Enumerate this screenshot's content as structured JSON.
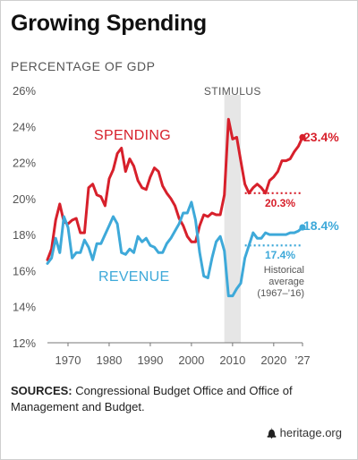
{
  "title": "Growing Spending",
  "subtitle": "PERCENTAGE OF GDP",
  "sources_label": "SOURCES:",
  "sources_text": " Congressional Budget Office and Office of Management and Budget.",
  "brand": "heritage.org",
  "colors": {
    "spending": "#d7202b",
    "revenue": "#3ea9d9",
    "band": "#e6e6e6",
    "axis": "#777777"
  },
  "chart_data": {
    "type": "line",
    "title": "Growing Spending",
    "ylabel": "PERCENTAGE OF GDP",
    "ylim": [
      12,
      26
    ],
    "xlim": [
      1965,
      2027
    ],
    "y_ticks": [
      "12%",
      "14%",
      "16%",
      "18%",
      "20%",
      "22%",
      "24%",
      "26%"
    ],
    "x_ticks": [
      "1970",
      "1980",
      "1990",
      "2000",
      "2010",
      "2020",
      "’27"
    ],
    "grid": false,
    "shaded_band": {
      "label": "STIMULUS",
      "x": [
        2008,
        2012
      ]
    },
    "series": [
      {
        "name": "SPENDING",
        "x": [
          1965,
          1966,
          1967,
          1968,
          1969,
          1970,
          1971,
          1972,
          1973,
          1974,
          1975,
          1976,
          1977,
          1978,
          1979,
          1980,
          1981,
          1982,
          1983,
          1984,
          1985,
          1986,
          1987,
          1988,
          1989,
          1990,
          1991,
          1992,
          1993,
          1994,
          1995,
          1996,
          1997,
          1998,
          1999,
          2000,
          2001,
          2002,
          2003,
          2004,
          2005,
          2006,
          2007,
          2008,
          2009,
          2010,
          2011,
          2012,
          2013,
          2014,
          2015,
          2016,
          2017,
          2018,
          2019,
          2020,
          2021,
          2022,
          2023,
          2024,
          2025,
          2026,
          2027
        ],
        "values": [
          16.6,
          17.2,
          18.8,
          19.7,
          18.7,
          18.6,
          18.8,
          18.9,
          18.1,
          18.1,
          20.6,
          20.8,
          20.2,
          20.1,
          19.6,
          21.1,
          21.6,
          22.5,
          22.8,
          21.5,
          22.2,
          21.8,
          21.0,
          20.6,
          20.5,
          21.2,
          21.7,
          21.5,
          20.7,
          20.3,
          20.0,
          19.6,
          18.9,
          18.5,
          17.9,
          17.6,
          17.6,
          18.5,
          19.1,
          19.0,
          19.2,
          19.1,
          19.1,
          20.2,
          24.4,
          23.3,
          23.4,
          22.1,
          20.8,
          20.3,
          20.6,
          20.8,
          20.6,
          20.3,
          21.0,
          21.2,
          21.5,
          22.1,
          22.1,
          22.2,
          22.6,
          22.9,
          23.4
        ]
      },
      {
        "name": "REVENUE",
        "x": [
          1965,
          1966,
          1967,
          1968,
          1969,
          1970,
          1971,
          1972,
          1973,
          1974,
          1975,
          1976,
          1977,
          1978,
          1979,
          1980,
          1981,
          1982,
          1983,
          1984,
          1985,
          1986,
          1987,
          1988,
          1989,
          1990,
          1991,
          1992,
          1993,
          1994,
          1995,
          1996,
          1997,
          1998,
          1999,
          2000,
          2001,
          2002,
          2003,
          2004,
          2005,
          2006,
          2007,
          2008,
          2009,
          2010,
          2011,
          2012,
          2013,
          2014,
          2015,
          2016,
          2017,
          2018,
          2019,
          2020,
          2021,
          2022,
          2023,
          2024,
          2025,
          2026,
          2027
        ],
        "values": [
          16.4,
          16.7,
          17.8,
          17.0,
          19.0,
          18.4,
          16.7,
          17.0,
          17.0,
          17.7,
          17.3,
          16.6,
          17.5,
          17.5,
          18.0,
          18.5,
          19.0,
          18.6,
          17.0,
          16.9,
          17.2,
          17.0,
          17.9,
          17.6,
          17.8,
          17.4,
          17.3,
          17.0,
          17.0,
          17.5,
          17.8,
          18.2,
          18.6,
          19.2,
          19.2,
          19.8,
          18.8,
          17.0,
          15.7,
          15.6,
          16.7,
          17.6,
          17.9,
          17.1,
          14.6,
          14.6,
          15.0,
          15.3,
          16.7,
          17.4,
          18.1,
          17.8,
          17.8,
          18.1,
          18.0,
          18.0,
          18.0,
          18.0,
          18.0,
          18.1,
          18.1,
          18.2,
          18.4
        ]
      }
    ],
    "reference_lines": [
      {
        "series": "SPENDING",
        "value": 20.3,
        "label": "20.3%"
      },
      {
        "series": "REVENUE",
        "value": 17.4,
        "label": "17.4%",
        "note": [
          "Historical",
          "average",
          "(1967–’16)"
        ]
      }
    ],
    "end_labels": [
      {
        "series": "SPENDING",
        "label": "23.4%"
      },
      {
        "series": "REVENUE",
        "label": "18.4%"
      }
    ]
  }
}
